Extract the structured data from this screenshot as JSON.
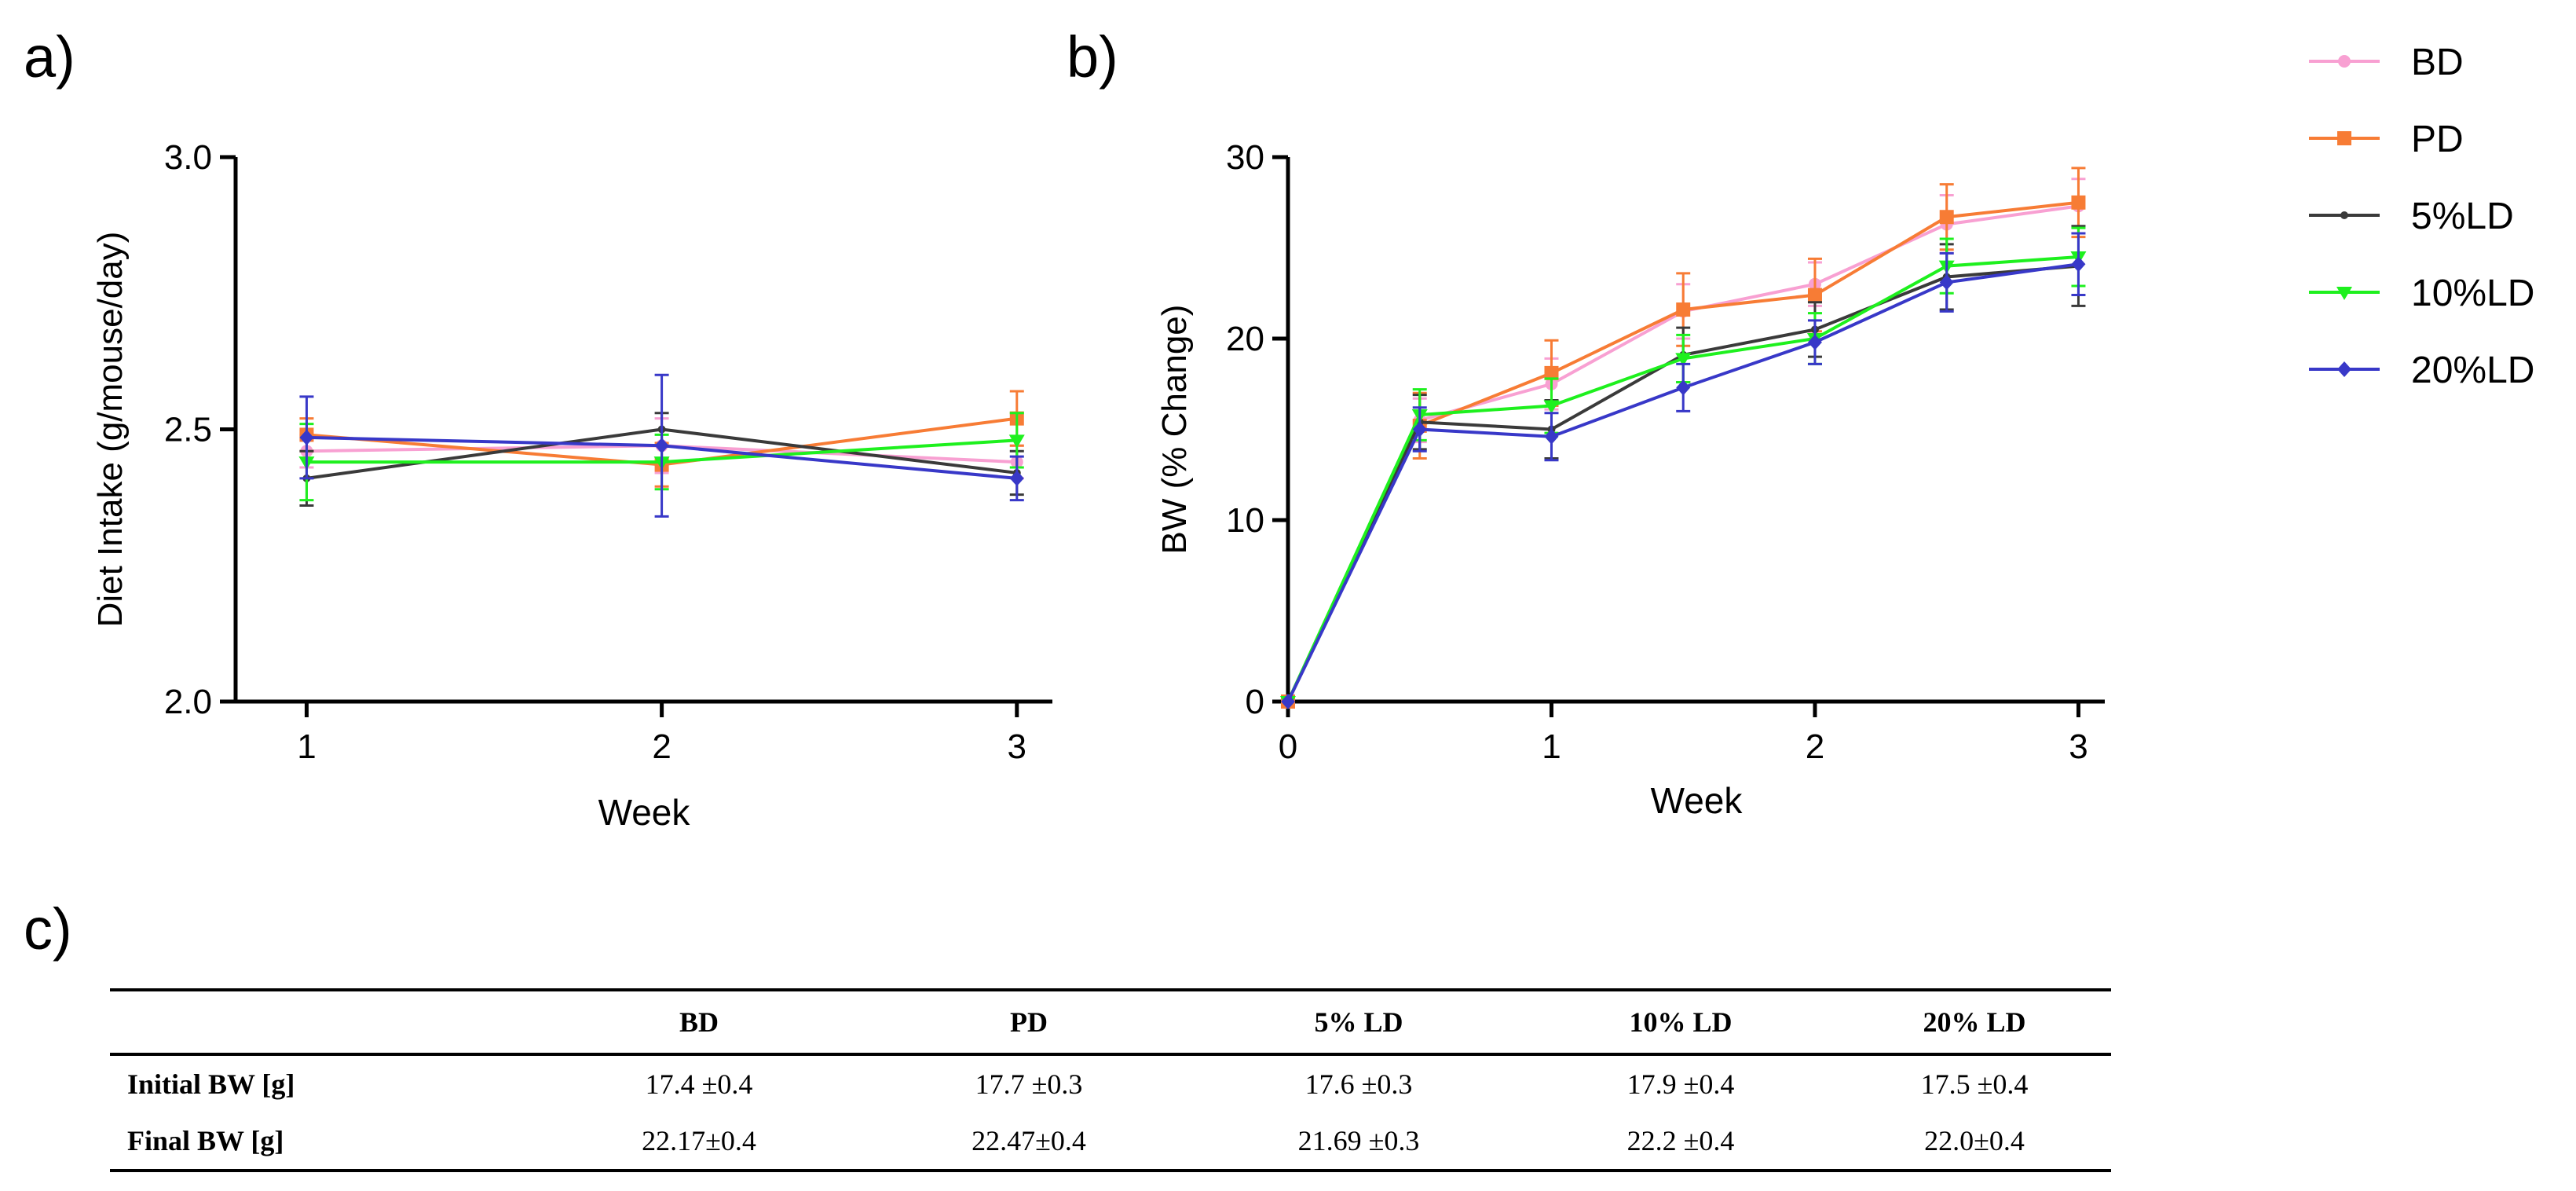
{
  "panels": {
    "a": "a)",
    "b": "b)",
    "c": "c)"
  },
  "colors": {
    "BD": "#f8a0d2",
    "PD": "#f77c35",
    "5%LD": "#3a3a3a",
    "10%LD": "#1ef01e",
    "20%LD": "#3838c8"
  },
  "legend": [
    "BD",
    "PD",
    "5%LD",
    "10%LD",
    "20%LD"
  ],
  "chart_data": [
    {
      "type": "line",
      "panel": "a",
      "title": "",
      "xlabel": "Week",
      "ylabel": "Diet Intake (g/mouse/day)",
      "x": [
        1,
        2,
        3
      ],
      "xticks": [
        "1",
        "2",
        "3"
      ],
      "xlim": [
        0.8,
        3.1
      ],
      "ylim": [
        2.0,
        3.0
      ],
      "yticks": [
        "2.0",
        "2.5",
        "3.0"
      ],
      "series": [
        {
          "name": "BD",
          "values": [
            2.46,
            2.47,
            2.44
          ],
          "err": [
            0.03,
            0.05,
            0.03
          ]
        },
        {
          "name": "PD",
          "values": [
            2.49,
            2.435,
            2.52
          ],
          "err": [
            0.03,
            0.04,
            0.05
          ]
        },
        {
          "name": "5%LD",
          "values": [
            2.41,
            2.5,
            2.42
          ],
          "err": [
            0.05,
            0.03,
            0.04
          ]
        },
        {
          "name": "10%LD",
          "values": [
            2.44,
            2.44,
            2.48
          ],
          "err": [
            0.07,
            0.05,
            0.05
          ]
        },
        {
          "name": "20%LD",
          "values": [
            2.485,
            2.47,
            2.41
          ],
          "err": [
            0.075,
            0.13,
            0.04
          ]
        }
      ]
    },
    {
      "type": "line",
      "panel": "b",
      "title": "",
      "xlabel": "Week",
      "ylabel": "BW (% Change)",
      "x": [
        0,
        0.5,
        1,
        1.5,
        2,
        2.5,
        3
      ],
      "xticks": [
        "0",
        "1",
        "2",
        "3"
      ],
      "xlim": [
        0,
        3.1
      ],
      "ylim": [
        0,
        30
      ],
      "yticks": [
        "0",
        "10",
        "20",
        "30"
      ],
      "series": [
        {
          "name": "BD",
          "values": [
            0,
            15.5,
            17.5,
            21.5,
            23.0,
            26.3,
            27.3
          ],
          "err": [
            0,
            1.2,
            1.4,
            1.5,
            1.2,
            1.6,
            1.5
          ]
        },
        {
          "name": "PD",
          "values": [
            0,
            15.2,
            18.1,
            21.6,
            22.4,
            26.7,
            27.5
          ],
          "err": [
            0,
            1.8,
            1.8,
            2.0,
            2.0,
            1.8,
            1.9
          ]
        },
        {
          "name": "5%LD",
          "values": [
            0,
            15.4,
            15.0,
            19.1,
            20.5,
            23.4,
            24.0
          ],
          "err": [
            0,
            1.5,
            1.6,
            1.5,
            1.5,
            1.8,
            2.2
          ]
        },
        {
          "name": "10%LD",
          "values": [
            0,
            15.8,
            16.3,
            18.9,
            20.0,
            24.0,
            24.5
          ],
          "err": [
            0,
            1.4,
            1.5,
            1.3,
            1.4,
            1.5,
            1.6
          ]
        },
        {
          "name": "20%LD",
          "values": [
            0,
            15.0,
            14.6,
            17.3,
            19.8,
            23.1,
            24.1
          ],
          "err": [
            0,
            1.2,
            1.3,
            1.3,
            1.2,
            1.6,
            1.7
          ]
        }
      ]
    }
  ],
  "table": {
    "headers": [
      "",
      "BD",
      "PD",
      "5% LD",
      "10% LD",
      "20% LD"
    ],
    "rows": [
      [
        "Initial BW [g]",
        "17.4 ±0.4",
        "17.7 ±0.3",
        "17.6 ±0.3",
        "17.9 ±0.4",
        "17.5 ±0.4"
      ],
      [
        "Final BW [g]",
        "22.17±0.4",
        "22.47±0.4",
        "21.69 ±0.3",
        "22.2 ±0.4",
        "22.0±0.4"
      ]
    ]
  }
}
